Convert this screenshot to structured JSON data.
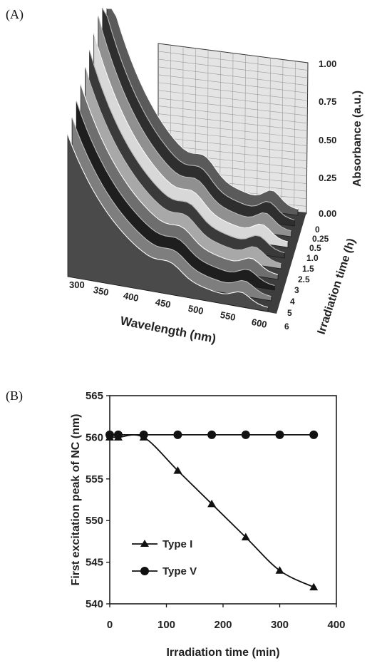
{
  "chart_data": [
    {
      "panel": "(A)",
      "type": "area",
      "xlabel": "Wavelength (nm)",
      "ylabel": "Absorbance (a.u.)",
      "zlabel": "Irradiation time (h)",
      "x_ticks": [
        "300",
        "350",
        "400",
        "450",
        "500",
        "550",
        "600"
      ],
      "y_ticks": [
        "0.00",
        "0.25",
        "0.50",
        "0.75",
        "1.00"
      ],
      "z_ticks": [
        "0",
        "0.25",
        "0.5",
        "1.0",
        "1.5",
        "2.5",
        "3",
        "4",
        "5",
        "6"
      ],
      "ylim": [
        0,
        1.0
      ],
      "colors": {
        "series": [
          "#5a5a5a",
          "#2e2e2e",
          "#909090",
          "#d8d8d8",
          "#3a3a3a",
          "#a8a8a8",
          "#6e6e6e",
          "#1e1e1e",
          "#7e7e7e",
          "#4a4a4a"
        ],
        "floor": "#3d3d3d",
        "wall": "#e4e4e4"
      }
    },
    {
      "panel": "(B)",
      "type": "line",
      "xlabel": "Irradiation time (min)",
      "ylabel": "First excitation peak of NC (nm)",
      "xlim": [
        0,
        400
      ],
      "ylim": [
        540,
        565
      ],
      "x_ticks": [
        "0",
        "100",
        "200",
        "300",
        "400"
      ],
      "y_ticks": [
        "540",
        "545",
        "550",
        "555",
        "560",
        "565"
      ],
      "series": [
        {
          "name": "Type I",
          "marker": "triangle",
          "x": [
            0,
            15,
            60,
            120,
            180,
            240,
            300,
            360
          ],
          "y": [
            560,
            560,
            560,
            556,
            552,
            548,
            544,
            542
          ]
        },
        {
          "name": "Type V",
          "marker": "circle",
          "x": [
            0,
            15,
            60,
            120,
            180,
            240,
            300,
            360
          ],
          "y": [
            560.3,
            560.3,
            560.3,
            560.3,
            560.3,
            560.3,
            560.3,
            560.3
          ]
        }
      ],
      "legend_position": "bottom-left"
    }
  ]
}
